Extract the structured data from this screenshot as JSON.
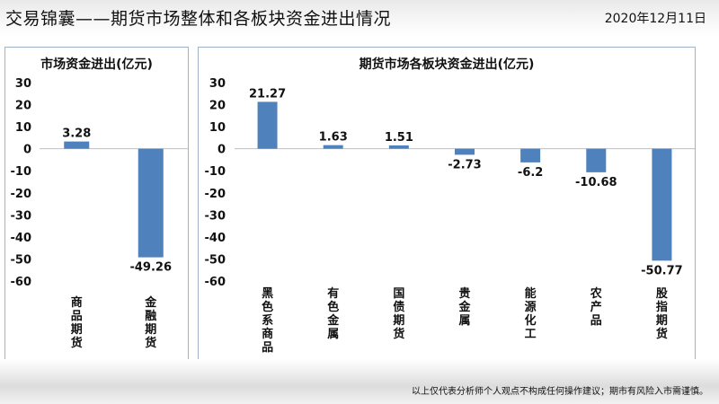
{
  "header": {
    "title": "交易锦囊——期货市场整体和各板块资金进出情况",
    "date": "2020年12月11日"
  },
  "footer": {
    "disclaimer": "以上仅代表分析师个人观点不构成任何操作建议；期市有风险入市需谨慎。"
  },
  "colors": {
    "bar": "#4f81bd",
    "panel_border": "#9fb3c8",
    "gridline": "#d9d9d9"
  },
  "chart_data": [
    {
      "type": "bar",
      "title": "市场资金进出(亿元)",
      "categories": [
        "商品期货",
        "金融期货"
      ],
      "values": [
        3.28,
        -49.26
      ],
      "ylim": [
        -60,
        30
      ],
      "yticks": [
        30,
        20,
        10,
        0,
        -10,
        -20,
        -30,
        -40,
        -50,
        -60
      ],
      "data_labels": [
        "3.28",
        "-49.26"
      ],
      "category_label_orientation": "vertical",
      "grid": false
    },
    {
      "type": "bar",
      "title": "期货市场各板块资金进出(亿元)",
      "categories": [
        "黑色系商品",
        "有色金属",
        "国债期货",
        "贵金属",
        "能源化工",
        "农产品",
        "股指期货"
      ],
      "values": [
        21.27,
        1.63,
        1.51,
        -2.73,
        -6.2,
        -10.68,
        -50.77
      ],
      "ylim": [
        -60,
        30
      ],
      "yticks": [
        30,
        20,
        10,
        0,
        -10,
        -20,
        -30,
        -40,
        -50,
        -60
      ],
      "data_labels": [
        "21.27",
        "1.63",
        "1.51",
        "-2.73",
        "-6.2",
        "-10.68",
        "-50.77"
      ],
      "category_label_orientation": "vertical",
      "grid": false
    }
  ]
}
